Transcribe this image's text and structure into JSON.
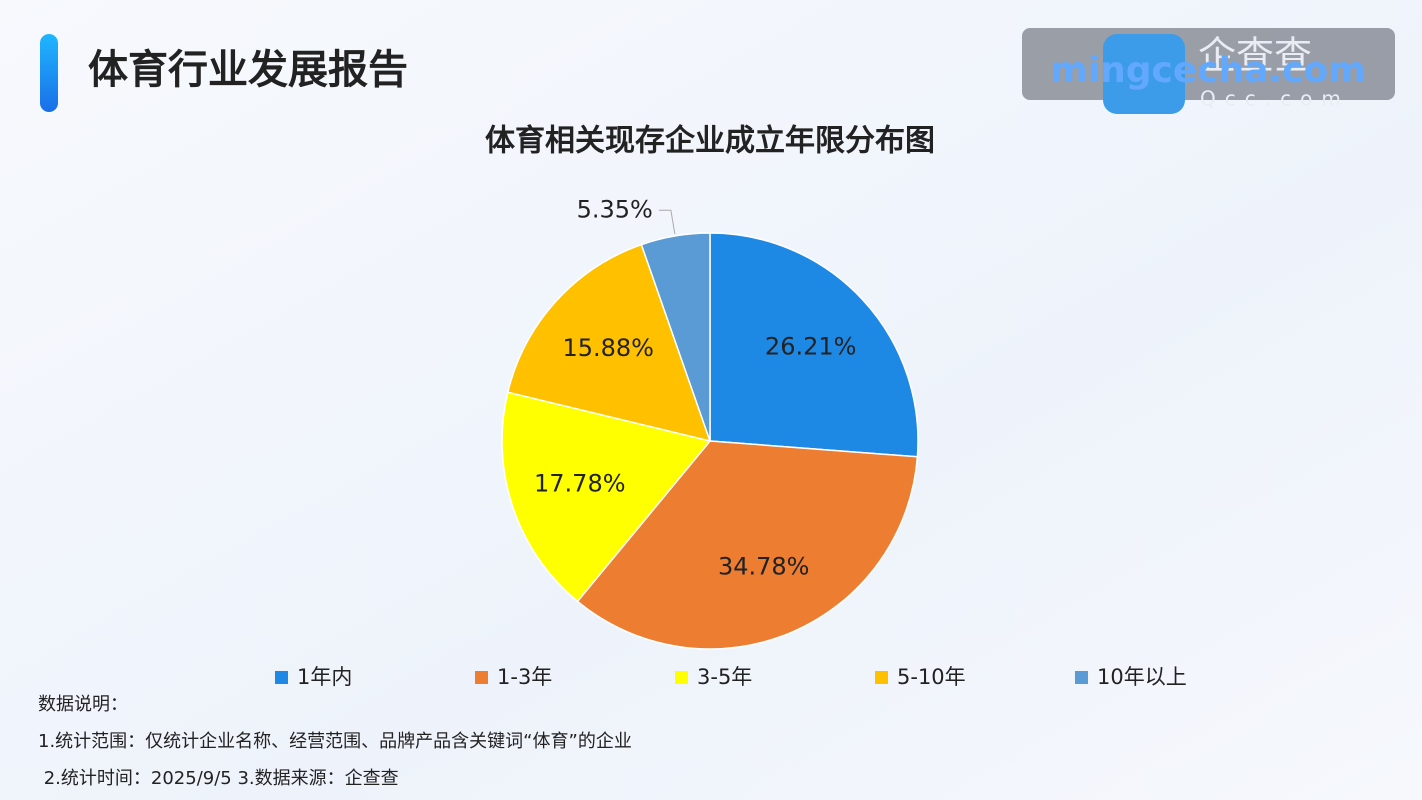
{
  "header": {
    "title": "体育行业发展报告"
  },
  "watermark": {
    "logo": "企查查",
    "domain": "Qcc.com",
    "site": "mingcecha.com"
  },
  "chart_data": {
    "type": "pie",
    "title": "体育相关现存企业成立年限分布图",
    "categories": [
      "1年内",
      "1-3年",
      "3-5年",
      "5-10年",
      "10年以上"
    ],
    "values": [
      26.21,
      34.78,
      17.78,
      15.88,
      5.35
    ],
    "value_labels": [
      "26.21%",
      "34.78%",
      "17.78%",
      "15.88%",
      "5.35%"
    ],
    "colors": [
      "#1e88e5",
      "#ed7d31",
      "#ffff00",
      "#ffc000",
      "#5b9bd5"
    ],
    "legend": "bottom"
  },
  "notes": {
    "heading": "数据说明：",
    "lines": [
      "1.统计范围：仅统计企业名称、经营范围、品牌产品含关键词“体育”的企业",
      " 2.统计时间：2025/9/5 3.数据来源：企查查"
    ]
  }
}
